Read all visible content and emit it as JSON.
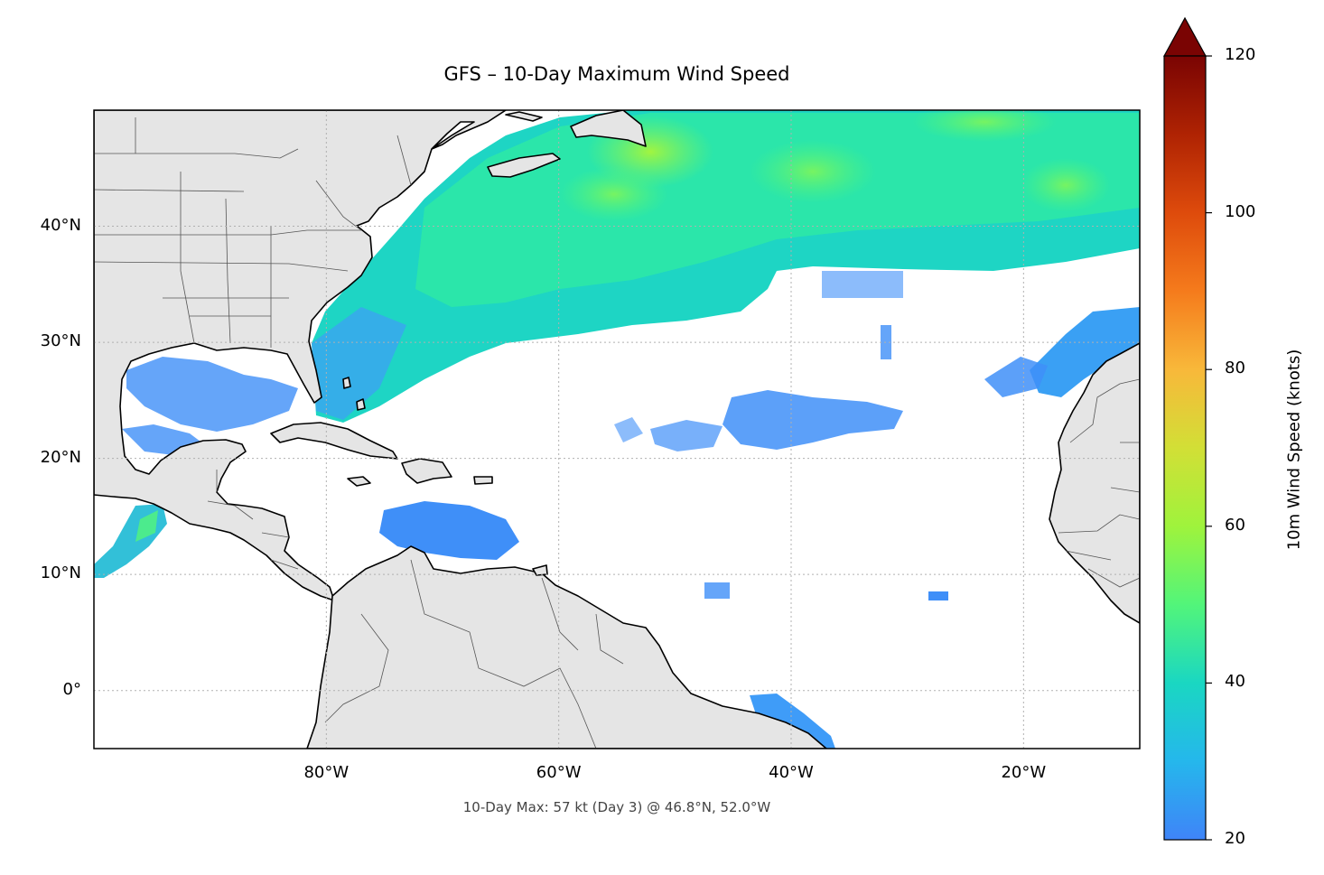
{
  "map": {
    "title": "GFS – 10-Day Maximum Wind Speed",
    "footnote": "10-Day Max: 57 kt (Day 3) @ 46.8°N, 52.0°W",
    "extent": {
      "lon_min": -100,
      "lon_max": -10,
      "lat_min": -5,
      "lat_max": 50
    },
    "lat_ticks": [
      {
        "value": 0,
        "label": "0°"
      },
      {
        "value": 10,
        "label": "10°N"
      },
      {
        "value": 20,
        "label": "20°N"
      },
      {
        "value": 30,
        "label": "30°N"
      },
      {
        "value": 40,
        "label": "40°N"
      }
    ],
    "lon_ticks": [
      {
        "value": -80,
        "label": "80°W"
      },
      {
        "value": -60,
        "label": "60°W"
      },
      {
        "value": -40,
        "label": "40°W"
      },
      {
        "value": -20,
        "label": "20°W"
      }
    ],
    "gridlines": "dotted",
    "colors": {
      "land": "#e5e5e5",
      "ocean": "#ffffff",
      "coast": "#000000",
      "borders": "#555555"
    }
  },
  "colorbar": {
    "label": "10m Wind Speed (knots)",
    "min": 20,
    "max": 120,
    "extend": "max",
    "ticks": [
      {
        "value": 20,
        "label": "20"
      },
      {
        "value": 40,
        "label": "40"
      },
      {
        "value": 60,
        "label": "60"
      },
      {
        "value": 80,
        "label": "80"
      },
      {
        "value": 100,
        "label": "100"
      },
      {
        "value": 120,
        "label": "120"
      }
    ],
    "colormap": "turbo"
  },
  "maximum": {
    "speed_kt": 57,
    "day": 3,
    "lat": 46.8,
    "lon": -52.0
  }
}
